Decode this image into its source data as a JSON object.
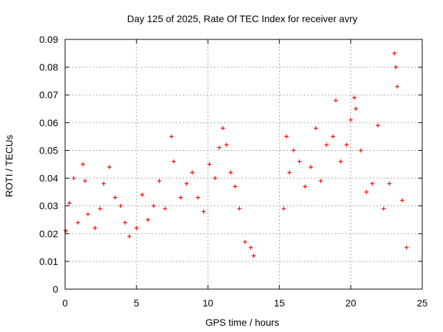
{
  "chart_data": {
    "type": "scatter",
    "title": "Day 125 of 2025, Rate Of TEC Index for receiver avry",
    "xlabel": "GPS time / hours",
    "ylabel": "ROTI / TECUs",
    "xlim": [
      0,
      25
    ],
    "ylim": [
      0,
      0.09
    ],
    "xticks": [
      "0",
      "5",
      "10",
      "15",
      "20",
      "25"
    ],
    "yticks": [
      "0",
      "0.01",
      "0.02",
      "0.03",
      "0.04",
      "0.05",
      "0.06",
      "0.07",
      "0.08",
      "0.09"
    ],
    "grid": true,
    "marker": "plus",
    "color": "#ff0000",
    "series": [
      {
        "x": [
          0.05,
          0.3,
          0.6,
          0.9,
          1.25,
          1.4,
          1.6,
          2.1,
          2.45,
          2.7,
          3.1,
          3.5,
          3.9,
          4.2,
          4.5,
          5.0,
          5.4,
          5.8,
          6.2,
          6.6,
          7.0,
          7.45,
          7.6,
          8.1,
          8.5,
          8.9,
          9.3,
          9.7,
          10.1,
          10.5,
          10.8,
          11.05,
          11.3,
          11.6,
          11.9,
          12.2,
          12.6,
          13.0,
          13.2,
          15.3,
          15.5,
          15.7,
          16.0,
          16.4,
          16.8,
          17.2,
          17.55,
          17.9,
          18.3,
          18.75,
          18.95,
          19.3,
          19.7,
          20.0,
          20.25,
          20.35,
          20.7,
          21.1,
          21.5,
          21.9,
          22.3,
          22.7,
          23.05,
          23.15,
          23.25,
          23.6,
          23.9
        ],
        "y": [
          0.021,
          0.031,
          0.04,
          0.024,
          0.045,
          0.039,
          0.027,
          0.022,
          0.029,
          0.038,
          0.044,
          0.033,
          0.03,
          0.024,
          0.019,
          0.022,
          0.034,
          0.025,
          0.03,
          0.039,
          0.029,
          0.055,
          0.046,
          0.033,
          0.038,
          0.042,
          0.033,
          0.028,
          0.045,
          0.04,
          0.051,
          0.058,
          0.052,
          0.042,
          0.037,
          0.029,
          0.017,
          0.015,
          0.012,
          0.029,
          0.055,
          0.042,
          0.05,
          0.046,
          0.037,
          0.044,
          0.058,
          0.039,
          0.052,
          0.055,
          0.068,
          0.046,
          0.052,
          0.061,
          0.069,
          0.065,
          0.05,
          0.035,
          0.038,
          0.059,
          0.029,
          0.038,
          0.085,
          0.08,
          0.073,
          0.032,
          0.015
        ]
      }
    ]
  }
}
